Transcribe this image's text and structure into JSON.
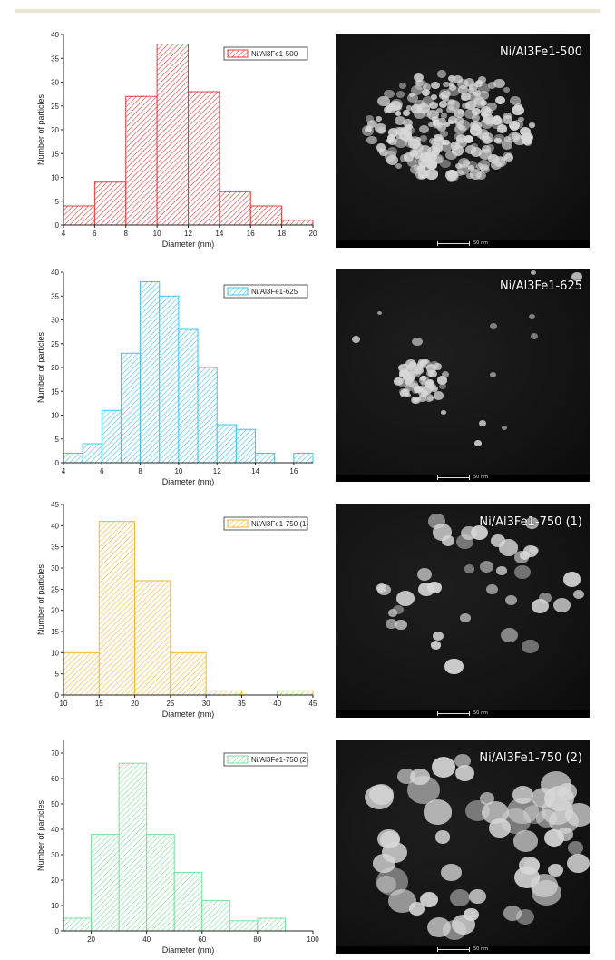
{
  "chart_data": [
    {
      "type": "bar",
      "bin_edges": [
        4,
        6,
        8,
        10,
        12,
        14,
        16,
        18,
        20
      ],
      "values": [
        4,
        9,
        27,
        38,
        28,
        7,
        4,
        1
      ],
      "xlabel": "Diameter (nm)",
      "ylabel": "Number of particles",
      "xlim": [
        4,
        20
      ],
      "ylim": [
        0,
        40
      ],
      "x_ticks": [
        "4",
        "6",
        "8",
        "10",
        "12",
        "14",
        "16",
        "18",
        "20"
      ],
      "y_ticks": [
        "0",
        "5",
        "10",
        "15",
        "20",
        "25",
        "30",
        "35",
        "40"
      ],
      "legend": "Ni/Al3Fe1-500",
      "color": "#e03c3c",
      "legend_placement": "top-right"
    },
    {
      "type": "bar",
      "bin_edges": [
        4,
        5,
        6,
        7,
        8,
        9,
        10,
        11,
        12,
        13,
        14,
        15,
        16,
        17
      ],
      "values": [
        2,
        4,
        11,
        23,
        38,
        35,
        28,
        20,
        8,
        7,
        2,
        0,
        2
      ],
      "xlabel": "Diameter (nm)",
      "ylabel": "Number of particles",
      "xlim": [
        4,
        17
      ],
      "ylim": [
        0,
        40
      ],
      "x_ticks": [
        "4",
        "6",
        "8",
        "10",
        "12",
        "14",
        "16"
      ],
      "y_ticks": [
        "0",
        "5",
        "10",
        "15",
        "20",
        "25",
        "30",
        "35",
        "40"
      ],
      "legend": "Ni/Al3Fe1-625",
      "color": "#3cc4ea",
      "legend_placement": "top-right"
    },
    {
      "type": "bar",
      "bin_edges": [
        10,
        15,
        20,
        25,
        30,
        35,
        40,
        45
      ],
      "values": [
        10,
        41,
        27,
        10,
        1,
        0,
        1
      ],
      "xlabel": "Diameter (nm)",
      "ylabel": "Number of particles",
      "xlim": [
        10,
        45
      ],
      "ylim": [
        0,
        45
      ],
      "x_ticks": [
        "10",
        "15",
        "20",
        "25",
        "30",
        "35",
        "40",
        "45"
      ],
      "y_ticks": [
        "0",
        "5",
        "10",
        "15",
        "20",
        "25",
        "30",
        "35",
        "40",
        "45"
      ],
      "legend": "Ni/Al3Fe1-750 (1)",
      "color": "#f2b630",
      "legend_placement": "top-right"
    },
    {
      "type": "bar",
      "bin_edges": [
        10,
        20,
        30,
        40,
        50,
        60,
        70,
        80,
        90
      ],
      "values": [
        5,
        38,
        66,
        38,
        23,
        12,
        4,
        5
      ],
      "xlabel": "Diameter (nm)",
      "ylabel": "Number of particles",
      "xlim": [
        10,
        100
      ],
      "ylim": [
        0,
        75
      ],
      "x_ticks": [
        "20",
        "40",
        "60",
        "80",
        "100"
      ],
      "y_ticks": [
        "0",
        "10",
        "20",
        "30",
        "40",
        "50",
        "60",
        "70"
      ],
      "legend": "Ni/Al3Fe1-750 (2)",
      "color": "#7ddc9e",
      "legend_placement": "top-right"
    }
  ],
  "micrographs": [
    {
      "label": "Ni/Al3Fe1-500",
      "scale": "50 nm"
    },
    {
      "label": "Ni/Al3Fe1-625",
      "scale": "50 nm"
    },
    {
      "label": "Ni/Al3Fe1-750 (1)",
      "scale": "50 nm"
    },
    {
      "label": "Ni/Al3Fe1-750 (2)",
      "scale": "50 nm"
    }
  ]
}
